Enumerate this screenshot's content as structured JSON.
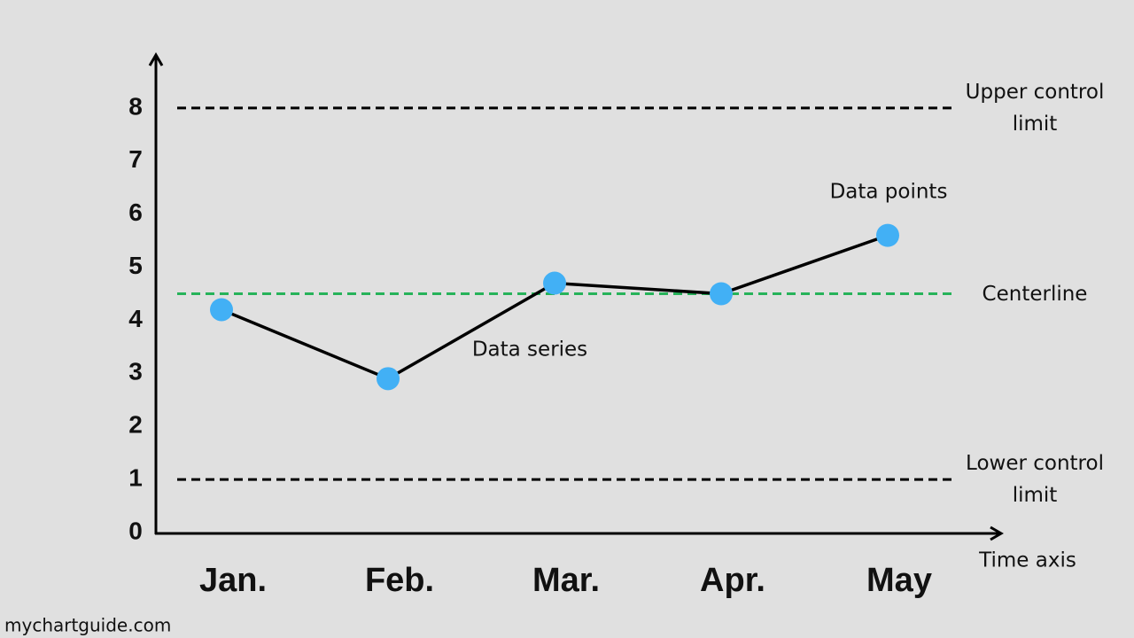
{
  "chart_data": {
    "type": "line",
    "categories": [
      "Jan.",
      "Feb.",
      "Mar.",
      "Apr.",
      "May"
    ],
    "values": [
      4.2,
      2.9,
      4.7,
      4.5,
      5.6
    ],
    "line_color": "#000000",
    "marker_color": "#42b0f5",
    "ylim": [
      0,
      9
    ],
    "yticks": [
      0,
      1,
      2,
      3,
      4,
      5,
      6,
      7,
      8
    ],
    "xlabel": "Time axis",
    "control_lines": [
      {
        "label": "Upper control limit",
        "value": 8,
        "color": "#000000"
      },
      {
        "label": "Centerline",
        "value": 4.5,
        "color": "#27b35a"
      },
      {
        "label": "Lower control limit",
        "value": 1,
        "color": "#000000"
      }
    ],
    "annotations": {
      "data_points": "Data points",
      "data_series": "Data series"
    },
    "source": "mychartguide.com"
  }
}
